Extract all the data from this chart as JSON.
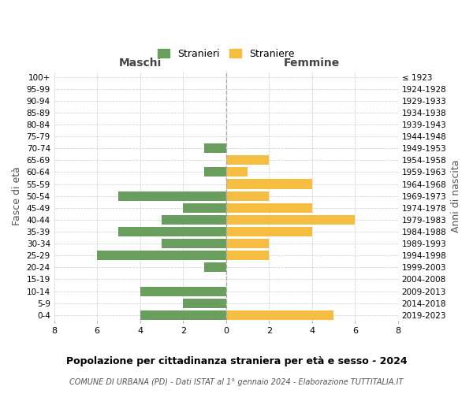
{
  "age_groups": [
    "100+",
    "95-99",
    "90-94",
    "85-89",
    "80-84",
    "75-79",
    "70-74",
    "65-69",
    "60-64",
    "55-59",
    "50-54",
    "45-49",
    "40-44",
    "35-39",
    "30-34",
    "25-29",
    "20-24",
    "15-19",
    "10-14",
    "5-9",
    "0-4"
  ],
  "birth_years": [
    "≤ 1923",
    "1924-1928",
    "1929-1933",
    "1934-1938",
    "1939-1943",
    "1944-1948",
    "1949-1953",
    "1954-1958",
    "1959-1963",
    "1964-1968",
    "1969-1973",
    "1974-1978",
    "1979-1983",
    "1984-1988",
    "1989-1993",
    "1994-1998",
    "1999-2003",
    "2004-2008",
    "2009-2013",
    "2014-2018",
    "2019-2023"
  ],
  "maschi": [
    0,
    0,
    0,
    0,
    0,
    0,
    1,
    0,
    1,
    0,
    5,
    2,
    3,
    5,
    3,
    6,
    1,
    0,
    4,
    2,
    4
  ],
  "femmine": [
    0,
    0,
    0,
    0,
    0,
    0,
    0,
    2,
    1,
    4,
    2,
    4,
    6,
    4,
    2,
    2,
    0,
    0,
    0,
    0,
    5
  ],
  "maschi_color": "#6a9e5f",
  "femmine_color": "#f5be41",
  "title": "Popolazione per cittadinanza straniera per età e sesso - 2024",
  "subtitle": "COMUNE DI URBANA (PD) - Dati ISTAT al 1° gennaio 2024 - Elaborazione TUTTITALIA.IT",
  "xlabel_left": "Maschi",
  "xlabel_right": "Femmine",
  "ylabel_left": "Fasce di età",
  "ylabel_right": "Anni di nascita",
  "legend_stranieri": "Stranieri",
  "legend_straniere": "Straniere",
  "xlim": 8,
  "bg_color": "#ffffff",
  "grid_color": "#cccccc",
  "bar_height": 0.8
}
